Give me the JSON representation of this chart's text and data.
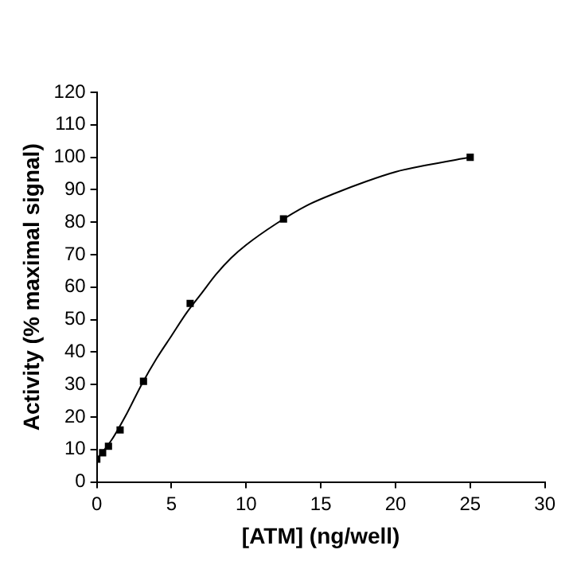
{
  "chart_data": {
    "type": "scatter",
    "xlabel": "[ATM] (ng/well)",
    "ylabel": "Activity (% maximal signal)",
    "xlim": [
      0,
      30
    ],
    "xticks": [
      0,
      5,
      10,
      15,
      20,
      25,
      30
    ],
    "ylim": [
      0,
      120
    ],
    "yticks": [
      0,
      10,
      20,
      30,
      40,
      50,
      60,
      70,
      80,
      90,
      100,
      110,
      120
    ],
    "grid": false,
    "legend": false,
    "series": [
      {
        "marker": "square",
        "color": "#000000",
        "x": [
          0,
          0.39,
          0.78,
          1.56,
          3.125,
          6.25,
          12.5,
          25
        ],
        "values": [
          7,
          9,
          11,
          16,
          31,
          55,
          81,
          100
        ]
      },
      {
        "type": "line",
        "marker": "none",
        "color": "#000000",
        "x": [
          0,
          1,
          2,
          3,
          4,
          5,
          6,
          7,
          8,
          9,
          10,
          12,
          14,
          16,
          18,
          20,
          22,
          25
        ],
        "values": [
          7,
          13,
          21,
          30,
          38,
          45,
          52,
          58,
          64,
          69,
          73,
          79.5,
          85,
          89,
          92.5,
          95.5,
          97.5,
          100
        ]
      }
    ]
  }
}
